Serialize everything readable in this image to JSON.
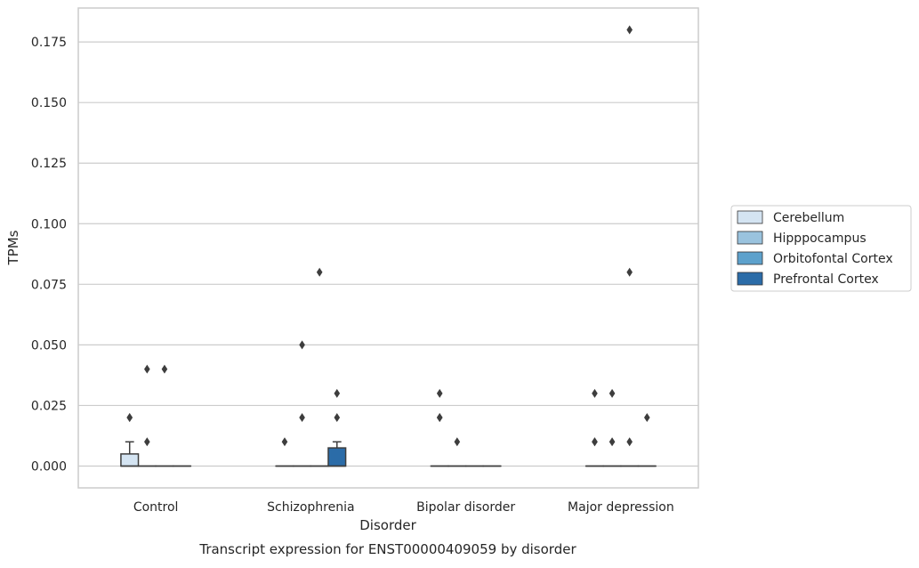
{
  "chart_data": {
    "type": "box",
    "caption": "Transcript expression for ENST00000409059 by disorder",
    "xlabel": "Disorder",
    "ylabel": "TPMs",
    "ylim": [
      -0.009,
      0.189
    ],
    "y_ticks": [
      "0.000",
      "0.025",
      "0.050",
      "0.075",
      "0.100",
      "0.125",
      "0.150",
      "0.175"
    ],
    "y_tick_values": [
      0.0,
      0.025,
      0.05,
      0.075,
      0.1,
      0.125,
      0.15,
      0.175
    ],
    "grid": true,
    "legend_position": "right",
    "categories": [
      "Control",
      "Schizophrenia",
      "Bipolar disorder",
      "Major depression"
    ],
    "series": [
      {
        "name": "Cerebellum",
        "color": "#d4e4f2",
        "boxes": [
          {
            "q1": 0.0,
            "median": 0.0,
            "q3": 0.005,
            "whisker_low": 0.0,
            "whisker_high": 0.01,
            "outliers": [
              0.02,
              0.02
            ]
          },
          {
            "q1": 0.0,
            "median": 0.0,
            "q3": 0.0,
            "whisker_low": 0.0,
            "whisker_high": 0.0,
            "outliers": [
              0.01
            ]
          },
          {
            "q1": 0.0,
            "median": 0.0,
            "q3": 0.0,
            "whisker_low": 0.0,
            "whisker_high": 0.0,
            "outliers": [
              0.03,
              0.02,
              0.02
            ]
          },
          {
            "q1": 0.0,
            "median": 0.0,
            "q3": 0.0,
            "whisker_low": 0.0,
            "whisker_high": 0.0,
            "outliers": [
              0.03,
              0.01,
              0.01
            ]
          }
        ]
      },
      {
        "name": "Hipppocampus",
        "color": "#9ac3de",
        "boxes": [
          {
            "q1": 0.0,
            "median": 0.0,
            "q3": 0.0,
            "whisker_low": 0.0,
            "whisker_high": 0.0,
            "outliers": [
              0.04,
              0.01
            ]
          },
          {
            "q1": 0.0,
            "median": 0.0,
            "q3": 0.0,
            "whisker_low": 0.0,
            "whisker_high": 0.0,
            "outliers": [
              0.05,
              0.02
            ]
          },
          {
            "q1": 0.0,
            "median": 0.0,
            "q3": 0.0,
            "whisker_low": 0.0,
            "whisker_high": 0.0,
            "outliers": [
              0.01
            ]
          },
          {
            "q1": 0.0,
            "median": 0.0,
            "q3": 0.0,
            "whisker_low": 0.0,
            "whisker_high": 0.0,
            "outliers": [
              0.03,
              0.01
            ]
          }
        ]
      },
      {
        "name": "Orbitofontal Cortex",
        "color": "#5da1cc",
        "boxes": [
          {
            "q1": 0.0,
            "median": 0.0,
            "q3": 0.0,
            "whisker_low": 0.0,
            "whisker_high": 0.0,
            "outliers": [
              0.04
            ]
          },
          {
            "q1": 0.0,
            "median": 0.0,
            "q3": 0.0,
            "whisker_low": 0.0,
            "whisker_high": 0.0,
            "outliers": [
              0.08
            ]
          },
          {
            "q1": 0.0,
            "median": 0.0,
            "q3": 0.0,
            "whisker_low": 0.0,
            "whisker_high": 0.0,
            "outliers": []
          },
          {
            "q1": 0.0,
            "median": 0.0,
            "q3": 0.0,
            "whisker_low": 0.0,
            "whisker_high": 0.0,
            "outliers": [
              0.18,
              0.08,
              0.01
            ]
          }
        ]
      },
      {
        "name": "Prefrontal Cortex",
        "color": "#2b6ca8",
        "boxes": [
          {
            "q1": 0.0,
            "median": 0.0,
            "q3": 0.0,
            "whisker_low": 0.0,
            "whisker_high": 0.0,
            "outliers": []
          },
          {
            "q1": 0.0,
            "median": 0.0,
            "q3": 0.0075,
            "whisker_low": 0.0,
            "whisker_high": 0.01,
            "outliers": [
              0.03,
              0.02
            ]
          },
          {
            "q1": 0.0,
            "median": 0.0,
            "q3": 0.0,
            "whisker_low": 0.0,
            "whisker_high": 0.0,
            "outliers": []
          },
          {
            "q1": 0.0,
            "median": 0.0,
            "q3": 0.0,
            "whisker_low": 0.0,
            "whisker_high": 0.0,
            "outliers": [
              0.02
            ]
          }
        ]
      }
    ]
  }
}
